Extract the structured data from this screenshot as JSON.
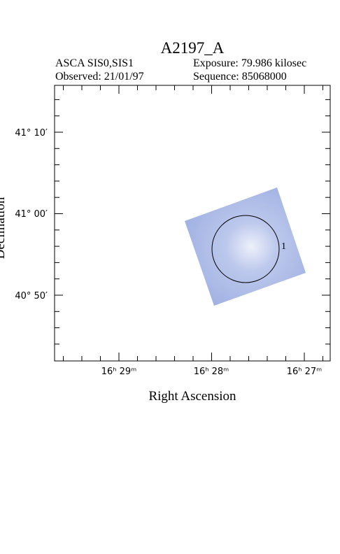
{
  "title": "A2197_A",
  "instrument": "ASCA SIS0,SIS1",
  "exposure": "Exposure: 79.986 kilosec",
  "observed": "Observed: 21/01/97",
  "sequence": "Sequence: 85068000",
  "dec_ticks": [
    "41° 10′",
    "41° 00′",
    "40° 50′"
  ],
  "ra_ticks": [
    "16ʰ 29ᵐ",
    "16ʰ 28ᵐ",
    "16ʰ 27ᵐ"
  ],
  "xlabel": "Right Ascension",
  "ylabel": "Declination",
  "source_label": "1"
}
